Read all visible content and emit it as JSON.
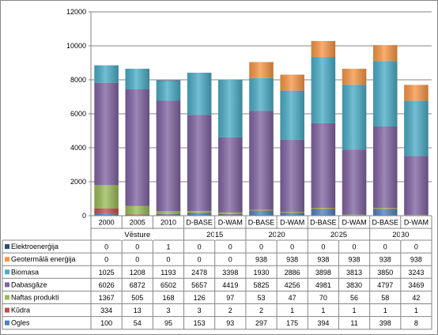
{
  "chart_data": {
    "type": "bar",
    "stacked": true,
    "title": "",
    "xlabel": "",
    "ylabel": "",
    "ylim": [
      0,
      12000
    ],
    "y_ticks": [
      "0",
      "2000",
      "4000",
      "6000",
      "8000",
      "10000",
      "12000"
    ],
    "grid": true,
    "legend": "data-table-left",
    "categories": [
      "2000",
      "2005",
      "2010",
      "D-BASE",
      "D-WAM",
      "D-BASE",
      "D-WAM",
      "D-BASE",
      "D-WAM",
      "D-BASE",
      "D-WAM"
    ],
    "groups": [
      {
        "label": "Vēsture",
        "span": 3
      },
      {
        "label": "2015",
        "span": 2
      },
      {
        "label": "2020",
        "span": 2
      },
      {
        "label": "2025",
        "span": 2
      },
      {
        "label": "2030",
        "span": 2
      }
    ],
    "series": [
      {
        "name": "Ogles",
        "color": "#4f81bd",
        "values": [
          100,
          54,
          95,
          153,
          93,
          297,
          175,
          394,
          11,
          398,
          8
        ],
        "labels": [
          "100",
          "54",
          "95",
          "153",
          "93",
          "297",
          "175",
          "394",
          "11",
          "398",
          "8"
        ]
      },
      {
        "name": "Kūdra",
        "color": "#c0504d",
        "values": [
          334,
          13,
          3,
          3,
          2,
          2,
          1,
          1,
          1,
          1,
          1
        ],
        "labels": [
          "334",
          "13",
          "3",
          "3",
          "2",
          "2",
          "1",
          "1",
          "1",
          "1",
          "1"
        ]
      },
      {
        "name": "Naftas produkti",
        "color": "#9bbb59",
        "values": [
          1367,
          505,
          168,
          126,
          97,
          53,
          47,
          70,
          56,
          58,
          42
        ],
        "labels": [
          "1367",
          "505",
          "168",
          "126",
          "97",
          "53",
          "47",
          "70",
          "56",
          "58",
          "42"
        ]
      },
      {
        "name": "Dabasgāze",
        "color": "#8064a2",
        "values": [
          6026,
          6872,
          6502,
          5657,
          4419,
          5825,
          4256,
          4981,
          3830,
          4797,
          3469
        ],
        "labels": [
          "6026",
          "6872",
          "6502",
          "5657",
          "4419",
          "5825",
          "4256",
          "4981",
          "3830",
          "4797",
          "3469"
        ]
      },
      {
        "name": "Biomasa",
        "color": "#4bacc6",
        "values": [
          1025,
          1208,
          1193,
          2478,
          3398,
          1930,
          2886,
          3898,
          3813,
          3850,
          3243
        ],
        "labels": [
          "1025",
          "1208",
          "1193",
          "2478",
          "3398",
          "1930",
          "2886",
          "3898",
          "3813",
          "3850",
          "3243"
        ]
      },
      {
        "name": "Geotermālā enerģija",
        "color": "#f79646",
        "values": [
          0,
          0,
          0,
          0,
          0,
          938,
          938,
          938,
          938,
          938,
          938
        ],
        "labels": [
          "0",
          "0",
          "0",
          "0",
          "0",
          "938",
          "938",
          "938",
          "938",
          "938",
          "938"
        ]
      },
      {
        "name": "Elektroenerģija",
        "color": "#2c4d75",
        "values": [
          0,
          0,
          1,
          0,
          0,
          0,
          0,
          0,
          0,
          0,
          0
        ],
        "labels": [
          "0",
          "0",
          "1",
          "0",
          "0",
          "0",
          "0",
          "0",
          "0",
          "0",
          "0"
        ]
      }
    ]
  }
}
